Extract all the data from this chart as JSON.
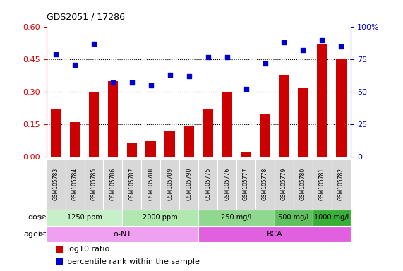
{
  "title": "GDS2051 / 17286",
  "samples": [
    "GSM105783",
    "GSM105784",
    "GSM105785",
    "GSM105786",
    "GSM105787",
    "GSM105788",
    "GSM105789",
    "GSM105790",
    "GSM105775",
    "GSM105776",
    "GSM105777",
    "GSM105778",
    "GSM105779",
    "GSM105780",
    "GSM105781",
    "GSM105782"
  ],
  "log10_ratio": [
    0.22,
    0.16,
    0.3,
    0.35,
    0.06,
    0.07,
    0.12,
    0.14,
    0.22,
    0.3,
    0.02,
    0.2,
    0.38,
    0.32,
    0.52,
    0.45
  ],
  "percentile_rank": [
    79,
    71,
    87,
    57,
    57,
    55,
    63,
    62,
    77,
    77,
    52,
    72,
    88,
    82,
    90,
    85
  ],
  "bar_color": "#cc0000",
  "scatter_color": "#0000cc",
  "ylim_left": [
    0,
    0.6
  ],
  "ylim_right": [
    0,
    100
  ],
  "yticks_left": [
    0,
    0.15,
    0.3,
    0.45,
    0.6
  ],
  "yticks_right": [
    0,
    25,
    50,
    75,
    100
  ],
  "dose_groups": [
    {
      "label": "1250 ppm",
      "start": 0,
      "end": 4,
      "color": "#c8f0c8"
    },
    {
      "label": "2000 ppm",
      "start": 4,
      "end": 8,
      "color": "#b0e8b0"
    },
    {
      "label": "250 mg/l",
      "start": 8,
      "end": 12,
      "color": "#90d890"
    },
    {
      "label": "500 mg/l",
      "start": 12,
      "end": 14,
      "color": "#60c060"
    },
    {
      "label": "1000 mg/l",
      "start": 14,
      "end": 16,
      "color": "#38b038"
    }
  ],
  "agent_groups": [
    {
      "label": "o-NT",
      "start": 0,
      "end": 8,
      "color": "#f0a0f0"
    },
    {
      "label": "BCA",
      "start": 8,
      "end": 16,
      "color": "#e060e0"
    }
  ],
  "dose_label": "dose",
  "agent_label": "agent",
  "legend_bar_label": "log10 ratio",
  "legend_scatter_label": "percentile rank within the sample",
  "background_color": "#ffffff",
  "tick_label_color_left": "#cc0000",
  "tick_label_color_right": "#0000cc",
  "xlabel_bg": "#d8d8d8"
}
